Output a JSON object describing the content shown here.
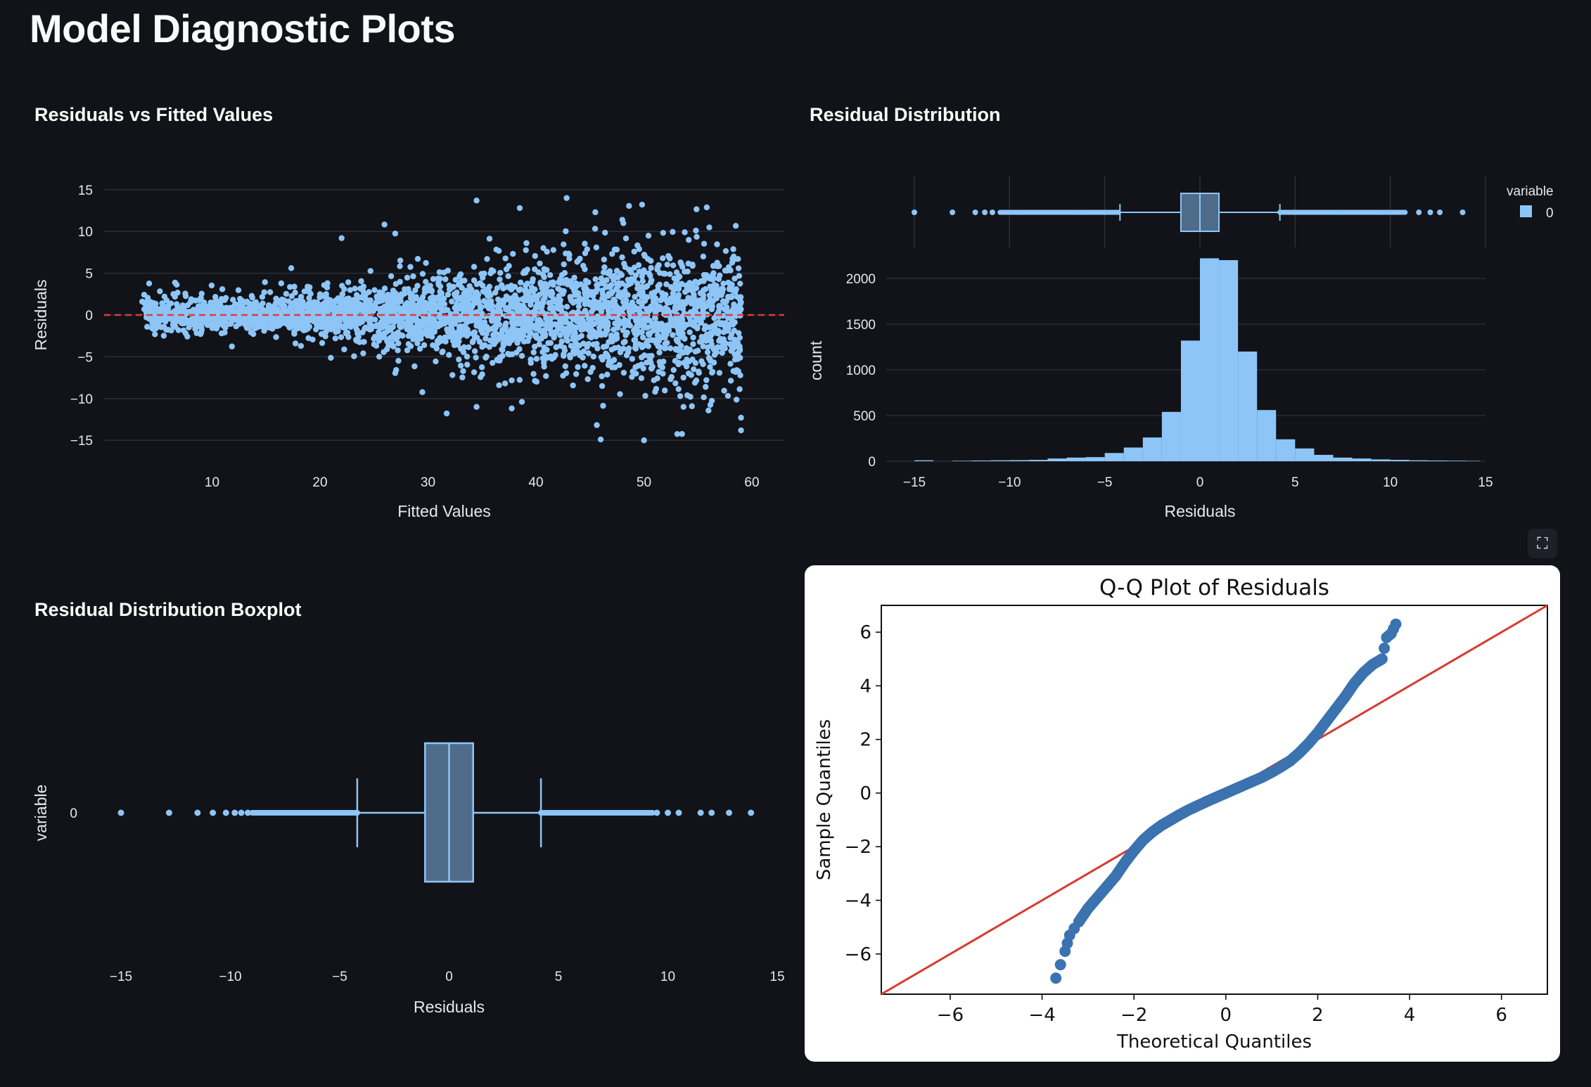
{
  "page": {
    "title": "Model Diagnostic Plots"
  },
  "colors": {
    "accent": "#8ec5f7",
    "box_fill": "#4e6b8a",
    "refline_dark": "#e03b3b",
    "qq_points": "#3b72b0",
    "qq_line": "#d63b2f",
    "background": "#111318"
  },
  "icons": {
    "fullscreen": "fullscreen-icon"
  },
  "chart_data": [
    {
      "id": "residuals-vs-fitted",
      "type": "scatter",
      "title": "Residuals vs Fitted Values",
      "xlabel": "Fitted Values",
      "ylabel": "Residuals",
      "xlim": [
        0,
        63
      ],
      "ylim": [
        -17,
        17
      ],
      "xticks": [
        10,
        20,
        30,
        40,
        50,
        60
      ],
      "yticks": [
        15,
        10,
        5,
        0,
        -5,
        -10,
        -15
      ],
      "yticklabels": [
        "15",
        "10",
        "5",
        "0",
        "−5",
        "−10",
        "−15"
      ],
      "grid": true,
      "reference_line": {
        "y": 0,
        "style": "dashed",
        "color": "#e03b3b"
      },
      "x_range_of_points": [
        3.5,
        59
      ],
      "spread_note_points": [
        {
          "x": 34.5,
          "y": 13.7
        },
        {
          "x": 38.5,
          "y": 12.8
        },
        {
          "x": 45.5,
          "y": 12.3
        },
        {
          "x": 48,
          "y": 11.4
        },
        {
          "x": 34.5,
          "y": -11
        },
        {
          "x": 38.7,
          "y": -10.4
        },
        {
          "x": 46,
          "y": -14.9
        },
        {
          "x": 22,
          "y": 9.2
        },
        {
          "x": 55.5,
          "y": 7
        }
      ]
    },
    {
      "id": "residual-distribution",
      "type": "bar",
      "title": "Residual Distribution",
      "xlabel": "Residuals",
      "ylabel": "count",
      "xlim": [
        -15,
        15
      ],
      "ylim": [
        0,
        2200
      ],
      "xticks": [
        -15,
        -10,
        -5,
        0,
        5,
        10,
        15
      ],
      "xticklabels": [
        "−15",
        "−10",
        "−5",
        "0",
        "5",
        "10",
        "15"
      ],
      "yticks": [
        0,
        500,
        1000,
        1500,
        2000
      ],
      "legend": {
        "title": "variable",
        "entries": [
          "0"
        ],
        "position": "top-right"
      },
      "bins": [
        {
          "x0": -15,
          "x1": -14,
          "count": 10
        },
        {
          "x0": -13,
          "x1": -12,
          "count": 5
        },
        {
          "x0": -12,
          "x1": -11,
          "count": 8
        },
        {
          "x0": -11,
          "x1": -10,
          "count": 10
        },
        {
          "x0": -10,
          "x1": -9,
          "count": 12
        },
        {
          "x0": -9,
          "x1": -8,
          "count": 15
        },
        {
          "x0": -8,
          "x1": -7,
          "count": 30
        },
        {
          "x0": -7,
          "x1": -6,
          "count": 40
        },
        {
          "x0": -6,
          "x1": -5,
          "count": 45
        },
        {
          "x0": -5,
          "x1": -4,
          "count": 90
        },
        {
          "x0": -4,
          "x1": -3,
          "count": 150
        },
        {
          "x0": -3,
          "x1": -2,
          "count": 260
        },
        {
          "x0": -2,
          "x1": -1,
          "count": 540
        },
        {
          "x0": -1,
          "x1": 0,
          "count": 1320
        },
        {
          "x0": 0,
          "x1": 1,
          "count": 2220
        },
        {
          "x0": 1,
          "x1": 2,
          "count": 2200
        },
        {
          "x0": 2,
          "x1": 3,
          "count": 1200
        },
        {
          "x0": 3,
          "x1": 4,
          "count": 560
        },
        {
          "x0": 4,
          "x1": 5,
          "count": 240
        },
        {
          "x0": 5,
          "x1": 6,
          "count": 140
        },
        {
          "x0": 6,
          "x1": 7,
          "count": 70
        },
        {
          "x0": 7,
          "x1": 8,
          "count": 40
        },
        {
          "x0": 8,
          "x1": 9,
          "count": 30
        },
        {
          "x0": 9,
          "x1": 10,
          "count": 20
        },
        {
          "x0": 10,
          "x1": 11,
          "count": 15
        },
        {
          "x0": 11,
          "x1": 12,
          "count": 10
        },
        {
          "x0": 12,
          "x1": 13,
          "count": 8
        },
        {
          "x0": 13,
          "x1": 14,
          "count": 6
        },
        {
          "x0": 14,
          "x1": 14.7,
          "count": 4
        }
      ],
      "marginal_box": {
        "q1": -1,
        "median": 0,
        "q3": 1,
        "whisker_low": -4.2,
        "whisker_high": 4.2,
        "min": -15,
        "max": 13.8
      }
    },
    {
      "id": "residual-boxplot",
      "type": "box",
      "title": "Residual Distribution Boxplot",
      "xlabel": "Residuals",
      "ylabel": "variable",
      "category": "0",
      "xlim": [
        -15,
        15
      ],
      "xticks": [
        -15,
        -10,
        -5,
        0,
        5,
        10,
        15
      ],
      "xticklabels": [
        "−15",
        "−10",
        "−5",
        "0",
        "5",
        "10",
        "15"
      ],
      "box": {
        "q1": -1.1,
        "median": 0,
        "q3": 1.1,
        "whisker_low": -4.2,
        "whisker_high": 4.2
      },
      "outliers_low": [
        -15,
        -12.8,
        -11.5,
        -10.8,
        -10.2,
        -9.8,
        -9.5,
        -9.2
      ],
      "outliers_high": [
        9.5,
        10,
        10.5,
        11.5,
        12,
        12.8,
        13.8
      ]
    },
    {
      "id": "qq-plot",
      "type": "scatter",
      "title": "Q-Q Plot of Residuals",
      "xlabel": "Theoretical Quantiles",
      "ylabel": "Sample Quantiles",
      "xlim": [
        -7.5,
        7
      ],
      "ylim": [
        -7.5,
        7
      ],
      "xticks": [
        -6,
        -4,
        -2,
        0,
        2,
        4,
        6
      ],
      "xticklabels": [
        "−6",
        "−4",
        "−2",
        "0",
        "2",
        "4",
        "6"
      ],
      "yticks": [
        6,
        4,
        2,
        0,
        -2,
        -4,
        -6
      ],
      "yticklabels": [
        "6",
        "4",
        "2",
        "0",
        "−2",
        "−4",
        "−6"
      ],
      "reference_line": {
        "slope": 1,
        "intercept": 0,
        "color": "#d63b2f"
      },
      "curve": [
        [
          -3.7,
          -6.9
        ],
        [
          -3.5,
          -5.9
        ],
        [
          -3.4,
          -5.3
        ],
        [
          -3.2,
          -4.8
        ],
        [
          -3.0,
          -4.3
        ],
        [
          -2.8,
          -3.9
        ],
        [
          -2.6,
          -3.5
        ],
        [
          -2.4,
          -3.1
        ],
        [
          -2.2,
          -2.6
        ],
        [
          -2.0,
          -2.15
        ],
        [
          -1.8,
          -1.75
        ],
        [
          -1.6,
          -1.45
        ],
        [
          -1.4,
          -1.2
        ],
        [
          -1.2,
          -1.0
        ],
        [
          -1.0,
          -0.8
        ],
        [
          -0.8,
          -0.62
        ],
        [
          -0.6,
          -0.46
        ],
        [
          -0.4,
          -0.3
        ],
        [
          -0.2,
          -0.15
        ],
        [
          0,
          0
        ],
        [
          0.2,
          0.15
        ],
        [
          0.4,
          0.3
        ],
        [
          0.6,
          0.45
        ],
        [
          0.8,
          0.6
        ],
        [
          1.0,
          0.78
        ],
        [
          1.2,
          0.98
        ],
        [
          1.4,
          1.2
        ],
        [
          1.6,
          1.5
        ],
        [
          1.8,
          1.85
        ],
        [
          2.0,
          2.25
        ],
        [
          2.2,
          2.7
        ],
        [
          2.4,
          3.15
        ],
        [
          2.6,
          3.6
        ],
        [
          2.8,
          4.1
        ],
        [
          3.0,
          4.5
        ],
        [
          3.2,
          4.8
        ],
        [
          3.4,
          5.0
        ],
        [
          3.5,
          5.8
        ],
        [
          3.6,
          5.95
        ],
        [
          3.7,
          6.3
        ]
      ]
    }
  ]
}
